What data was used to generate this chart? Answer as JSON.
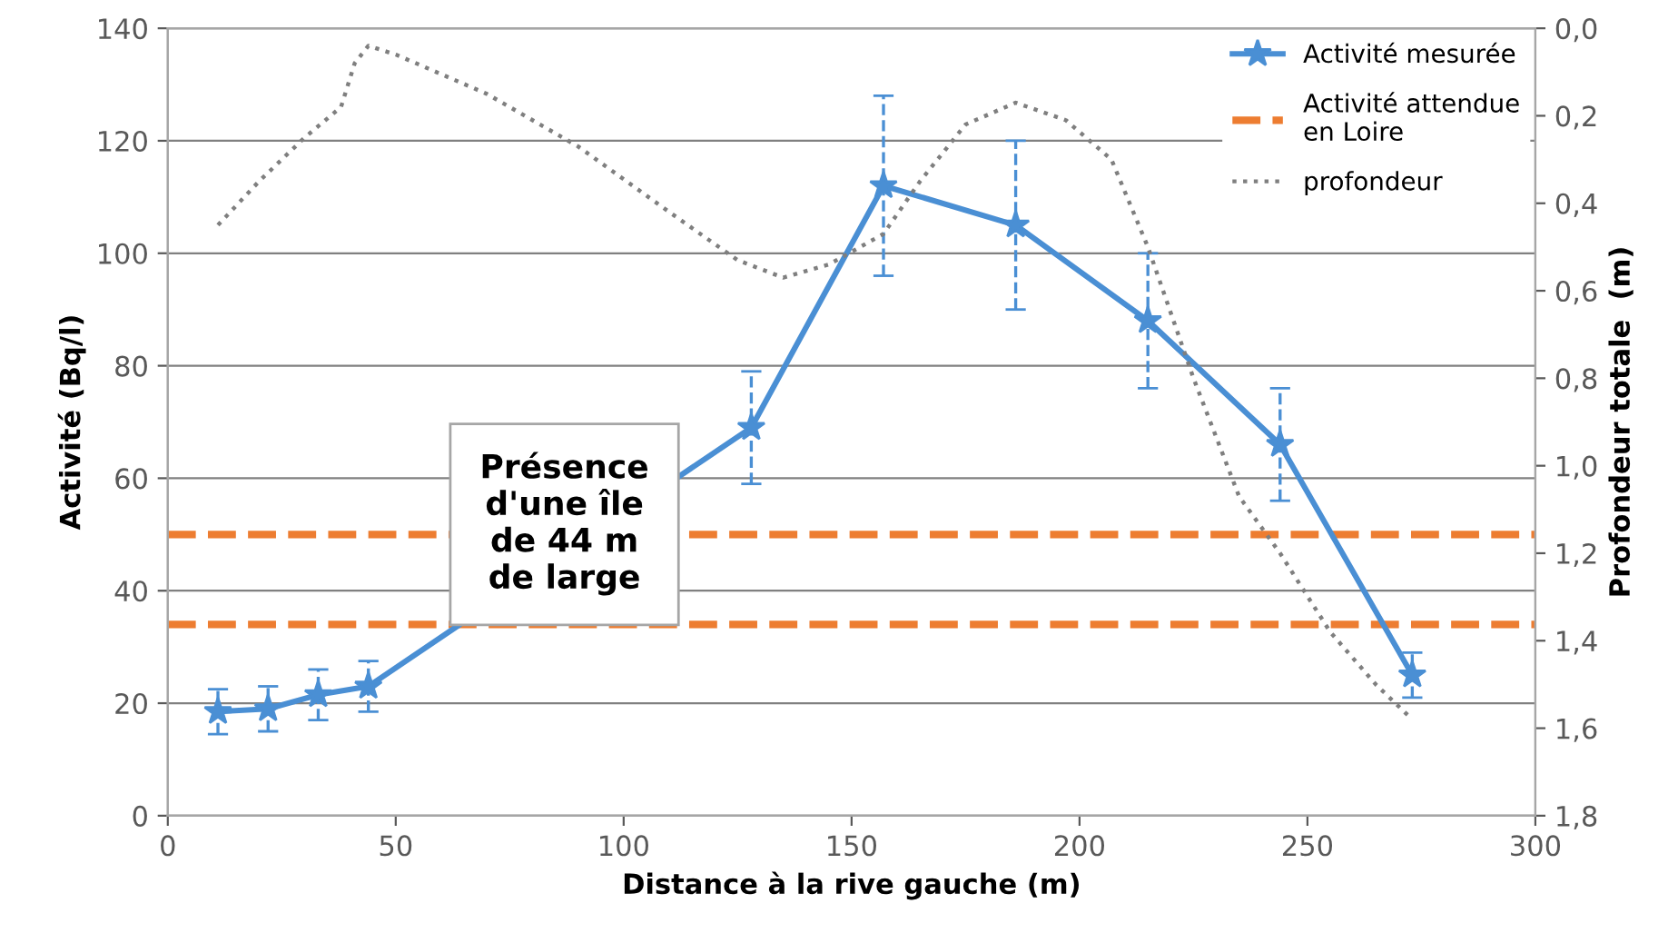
{
  "chart_data": {
    "type": "line",
    "xlabel": "Distance à la rive gauche (m)",
    "ylabel": "Activité (Bq/l)",
    "y2label": "Profondeur totale  (m)",
    "xlim": [
      0,
      300
    ],
    "xticks": [
      0,
      50,
      100,
      150,
      200,
      250,
      300
    ],
    "ylim": [
      0,
      140
    ],
    "yticks": [
      0,
      20,
      40,
      60,
      80,
      100,
      120,
      140
    ],
    "y2lim": [
      1.8,
      0
    ],
    "y2ticks": [
      {
        "value": 0,
        "label": "0,0"
      },
      {
        "value": 0.2,
        "label": "0,2"
      },
      {
        "value": 0.4,
        "label": "0,4"
      },
      {
        "value": 0.6,
        "label": "0,6"
      },
      {
        "value": 0.8,
        "label": "0,8"
      },
      {
        "value": 1.0,
        "label": "1,0"
      },
      {
        "value": 1.2,
        "label": "1,2"
      },
      {
        "value": 1.4,
        "label": "1,4"
      },
      {
        "value": 1.6,
        "label": "1,6"
      },
      {
        "value": 1.8,
        "label": "1,8"
      }
    ],
    "grid": "y",
    "legend": "top right",
    "series": [
      {
        "name": "Activité mesurée",
        "color": "#4a8fd4",
        "marker": "star",
        "line_style": "solid",
        "x": [
          11,
          22,
          33,
          44,
          128,
          157,
          186,
          215,
          244,
          273
        ],
        "values": [
          18.5,
          19,
          21.5,
          23,
          69,
          112,
          105,
          88,
          66,
          25
        ],
        "errors": [
          4,
          4,
          4.5,
          4.5,
          10,
          16,
          15,
          12,
          10,
          4
        ]
      },
      {
        "name": "profondeur",
        "axis": "y2",
        "color": "#7f7f7f",
        "marker": "none",
        "line_style": "dotted",
        "x": [
          11,
          20,
          30,
          38,
          41,
          44,
          50,
          70,
          90,
          110,
          125,
          135,
          145,
          157,
          165,
          175,
          186,
          197,
          207,
          215,
          225,
          235,
          244,
          255,
          265,
          273
        ],
        "values": [
          0.45,
          0.35,
          0.25,
          0.18,
          0.08,
          0.04,
          0.06,
          0.15,
          0.27,
          0.42,
          0.53,
          0.57,
          0.54,
          0.47,
          0.35,
          0.22,
          0.17,
          0.21,
          0.3,
          0.5,
          0.8,
          1.07,
          1.2,
          1.38,
          1.5,
          1.58
        ]
      }
    ],
    "ref_lines": [
      {
        "axis": "y",
        "value": 50,
        "label": "Activité attendue\nen Loire",
        "color": "#ed7d31",
        "line_style": "dashed"
      },
      {
        "axis": "y",
        "value": 34,
        "label": null,
        "color": "#ed7d31",
        "line_style": "dashed"
      }
    ],
    "annotations": [
      "Présence\nd'une île\nde 44 m\nde large"
    ]
  }
}
